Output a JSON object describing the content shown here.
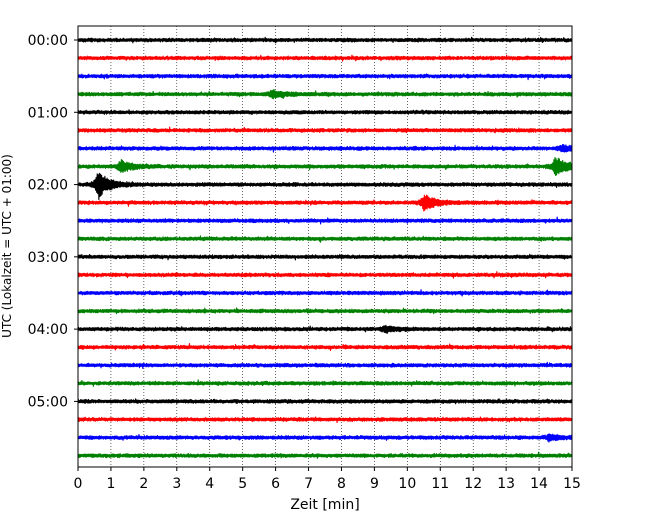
{
  "chart_data": {
    "type": "line",
    "chart_kind": "helicorder-seismogram",
    "xlabel": "Zeit  [min]",
    "ylabel": "UTC (Lokalzeit = UTC + 01:00)",
    "xlim": [
      0,
      15
    ],
    "x_ticks": [
      0,
      1,
      2,
      3,
      4,
      5,
      6,
      7,
      8,
      9,
      10,
      11,
      12,
      13,
      14,
      15
    ],
    "y_tick_labels": [
      "00:00",
      "01:00",
      "02:00",
      "03:00",
      "04:00",
      "05:00"
    ],
    "trace_interval_minutes": 15,
    "grid": "vertical dotted at each minute",
    "colors": [
      "#000000",
      "#ff0000",
      "#0000ff",
      "#008000"
    ],
    "traces": [
      {
        "start": "00:00",
        "color": "#000000",
        "events": []
      },
      {
        "start": "00:15",
        "color": "#ff0000",
        "events": []
      },
      {
        "start": "00:30",
        "color": "#0000ff",
        "events": []
      },
      {
        "start": "00:45",
        "color": "#008000",
        "events": [
          {
            "t": 5.9,
            "amp": 0.35
          }
        ]
      },
      {
        "start": "01:00",
        "color": "#000000",
        "events": []
      },
      {
        "start": "01:15",
        "color": "#ff0000",
        "events": []
      },
      {
        "start": "01:30",
        "color": "#0000ff",
        "events": [
          {
            "t": 14.7,
            "amp": 0.3
          }
        ]
      },
      {
        "start": "01:45",
        "color": "#008000",
        "events": [
          {
            "t": 1.3,
            "amp": 0.6
          },
          {
            "t": 14.5,
            "amp": 0.9
          }
        ]
      },
      {
        "start": "02:00",
        "color": "#000000",
        "events": [
          {
            "t": 0.6,
            "amp": 1.3
          }
        ]
      },
      {
        "start": "02:15",
        "color": "#ff0000",
        "events": [
          {
            "t": 10.5,
            "amp": 0.75
          }
        ]
      },
      {
        "start": "02:30",
        "color": "#0000ff",
        "events": []
      },
      {
        "start": "02:45",
        "color": "#008000",
        "events": []
      },
      {
        "start": "03:00",
        "color": "#000000",
        "events": []
      },
      {
        "start": "03:15",
        "color": "#ff0000",
        "events": []
      },
      {
        "start": "03:30",
        "color": "#0000ff",
        "events": []
      },
      {
        "start": "03:45",
        "color": "#008000",
        "events": []
      },
      {
        "start": "04:00",
        "color": "#000000",
        "events": [
          {
            "t": 9.3,
            "amp": 0.3
          }
        ]
      },
      {
        "start": "04:15",
        "color": "#ff0000",
        "events": []
      },
      {
        "start": "04:30",
        "color": "#0000ff",
        "events": []
      },
      {
        "start": "04:45",
        "color": "#008000",
        "events": []
      },
      {
        "start": "05:00",
        "color": "#000000",
        "events": []
      },
      {
        "start": "05:15",
        "color": "#ff0000",
        "events": []
      },
      {
        "start": "05:30",
        "color": "#0000ff",
        "events": [
          {
            "t": 14.3,
            "amp": 0.3
          }
        ]
      },
      {
        "start": "05:45",
        "color": "#008000",
        "events": []
      }
    ]
  }
}
